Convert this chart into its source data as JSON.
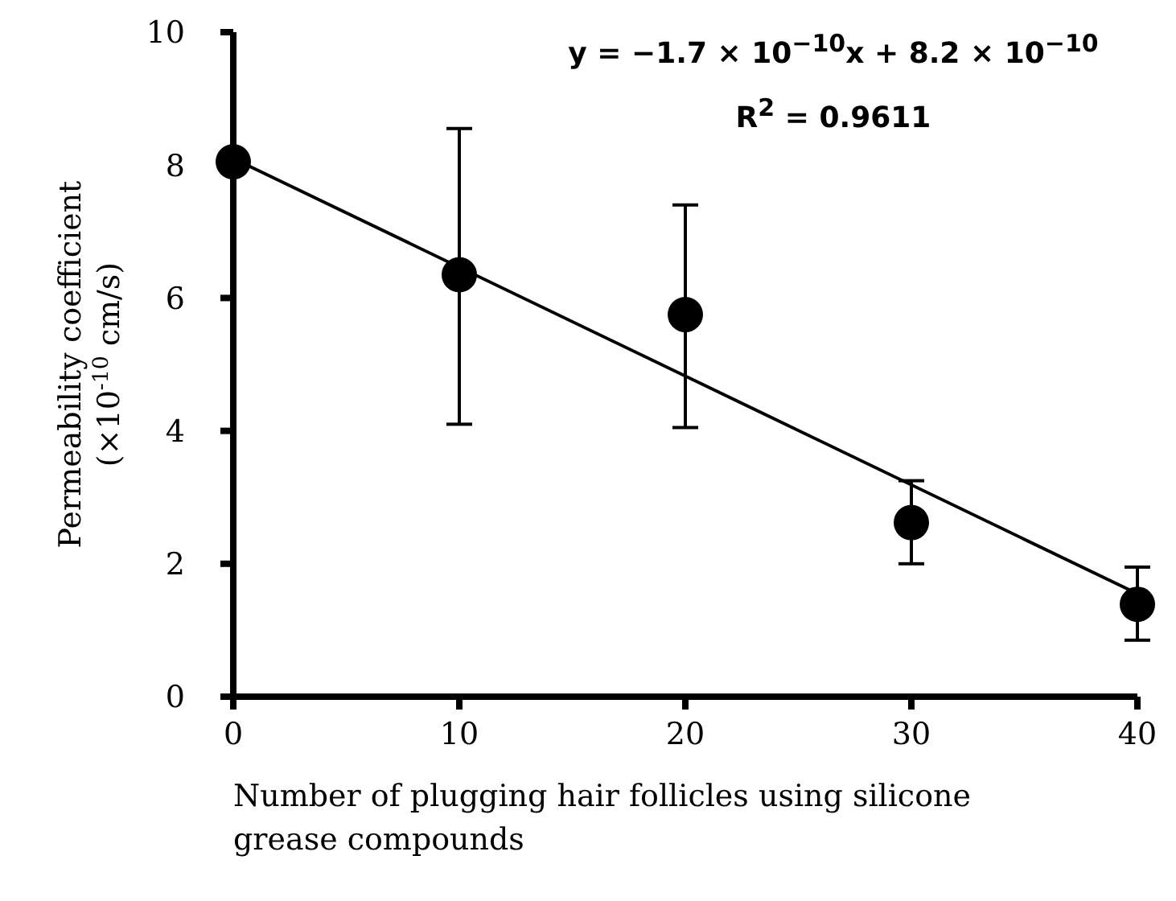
{
  "chart_data": {
    "type": "scatter",
    "xlabel": "Number of plugging hair follicles using silicone grease compounds",
    "ylabel": "Permeability coefficient (×10$^{-10}$ cm/s)",
    "annotations": [
      "y = −1.7 × 10$^{−10}$x + 8.2 × 10$^{−10}$",
      "R$^{2}$ = 0.9611"
    ],
    "xlim": [
      0,
      40
    ],
    "xticks": [
      0,
      10,
      20,
      30,
      40
    ],
    "ylim": [
      0,
      10
    ],
    "yticks": [
      0,
      2,
      4,
      6,
      8,
      10
    ],
    "grid": false,
    "legend": false,
    "series": [
      {
        "color": "#000000",
        "marker": "circle",
        "x": [
          0,
          10,
          20,
          30,
          40
        ],
        "values": [
          8.05,
          6.35,
          5.75,
          2.62,
          1.39
        ],
        "errors": [
          null,
          [
            4.1,
            8.55
          ],
          [
            4.05,
            7.4
          ],
          [
            2.0,
            3.25
          ],
          [
            0.85,
            1.95
          ]
        ]
      },
      {
        "type": "line",
        "color": "#000000",
        "x": [
          0,
          40
        ],
        "values": [
          8.1,
          1.55
        ]
      }
    ]
  }
}
